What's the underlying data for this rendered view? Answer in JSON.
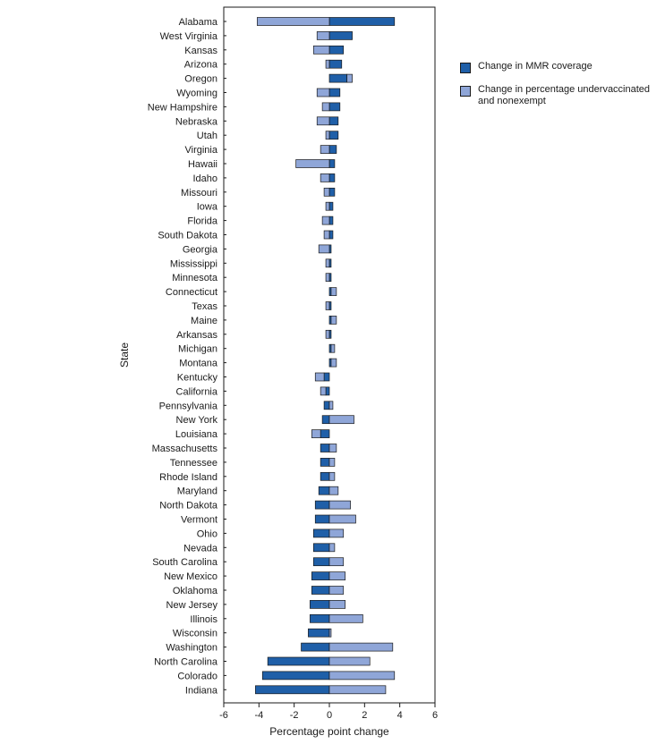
{
  "chart_data": {
    "type": "bar",
    "orientation": "horizontal",
    "title": "",
    "xlabel": "Percentage point change",
    "ylabel": "State",
    "xlim": [
      -6,
      6
    ],
    "xticks": [
      -6,
      -4,
      -2,
      0,
      2,
      4,
      6
    ],
    "colors": {
      "mmr": "#1f5fa8",
      "underv": "#8fa6d8",
      "outline": "#1a1a1a"
    },
    "legend": {
      "position": "top-right",
      "mmr_label": "Change in MMR coverage",
      "underv_label": "Change in percentage undervaccinated and nonexempt"
    },
    "categories": [
      "Alabama",
      "West Virginia",
      "Kansas",
      "Arizona",
      "Oregon",
      "Wyoming",
      "New Hampshire",
      "Nebraska",
      "Utah",
      "Virginia",
      "Hawaii",
      "Idaho",
      "Missouri",
      "Iowa",
      "Florida",
      "South Dakota",
      "Georgia",
      "Mississippi",
      "Minnesota",
      "Connecticut",
      "Texas",
      "Maine",
      "Arkansas",
      "Michigan",
      "Montana",
      "Kentucky",
      "California",
      "Pennsylvania",
      "New York",
      "Louisiana",
      "Massachusetts",
      "Tennessee",
      "Rhode Island",
      "Maryland",
      "North Dakota",
      "Vermont",
      "Ohio",
      "Nevada",
      "South Carolina",
      "New Mexico",
      "Oklahoma",
      "New Jersey",
      "Illinois",
      "Wisconsin",
      "Washington",
      "North Carolina",
      "Colorado",
      "Indiana"
    ],
    "series": [
      {
        "name": "Change in MMR coverage",
        "values": [
          3.7,
          1.3,
          0.8,
          0.7,
          1.0,
          0.6,
          0.6,
          0.5,
          0.5,
          0.4,
          0.3,
          0.3,
          0.3,
          0.2,
          0.2,
          0.2,
          0.1,
          0.1,
          0.1,
          0.1,
          0.1,
          0.1,
          0.1,
          0.1,
          0.1,
          -0.3,
          -0.2,
          -0.3,
          -0.4,
          -0.5,
          -0.5,
          -0.5,
          -0.5,
          -0.6,
          -0.8,
          -0.8,
          -0.9,
          -0.9,
          -0.9,
          -1.0,
          -1.0,
          -1.1,
          -1.1,
          -1.2,
          -1.6,
          -3.5,
          -3.8,
          -4.2
        ]
      },
      {
        "name": "Change in percentage undervaccinated and nonexempt",
        "values": [
          -4.1,
          -0.7,
          -0.9,
          -0.2,
          0.3,
          -0.7,
          -0.4,
          -0.7,
          -0.2,
          -0.5,
          -1.9,
          -0.5,
          -0.3,
          -0.2,
          -0.4,
          -0.3,
          -0.6,
          -0.2,
          -0.2,
          0.3,
          -0.2,
          0.3,
          -0.2,
          0.2,
          0.3,
          -0.5,
          -0.3,
          0.2,
          1.4,
          -0.5,
          0.4,
          0.3,
          0.3,
          0.5,
          1.2,
          1.5,
          0.8,
          0.3,
          0.8,
          0.9,
          0.8,
          0.9,
          1.9,
          0.1,
          3.6,
          2.3,
          3.7,
          3.2
        ]
      }
    ]
  }
}
